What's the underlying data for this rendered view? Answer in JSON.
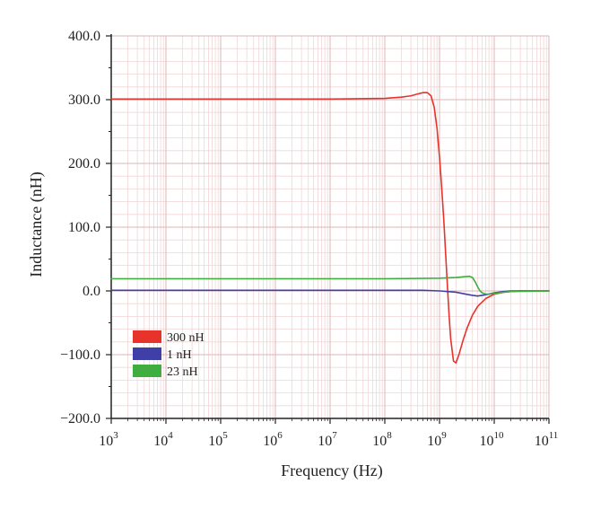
{
  "chart_data": {
    "type": "line",
    "xlabel": "Frequency (Hz)",
    "ylabel": "Inductance (nH)",
    "x_scale": "log",
    "xlim": [
      1000,
      100000000000
    ],
    "ylim": [
      -200,
      400
    ],
    "x_ticks": [
      {
        "base": "10",
        "exp": "3",
        "value": 1000
      },
      {
        "base": "10",
        "exp": "4",
        "value": 10000
      },
      {
        "base": "10",
        "exp": "5",
        "value": 100000
      },
      {
        "base": "10",
        "exp": "6",
        "value": 1000000
      },
      {
        "base": "10",
        "exp": "7",
        "value": 10000000
      },
      {
        "base": "10",
        "exp": "8",
        "value": 100000000
      },
      {
        "base": "10",
        "exp": "9",
        "value": 1000000000
      },
      {
        "base": "10",
        "exp": "10",
        "value": 10000000000
      },
      {
        "base": "10",
        "exp": "11",
        "value": 100000000000
      }
    ],
    "y_ticks": [
      {
        "label": "400.0",
        "value": 400
      },
      {
        "label": "300.0",
        "value": 300
      },
      {
        "label": "200.0",
        "value": 200
      },
      {
        "label": "100.0",
        "value": 100
      },
      {
        "label": "0.0",
        "value": 0
      },
      {
        "label": "−100.0",
        "value": -100
      },
      {
        "label": "−200.0",
        "value": -200
      }
    ],
    "grid": true,
    "legend_position": "bottom-left",
    "series": [
      {
        "name": "300 nH",
        "color": "#e8322c",
        "x": [
          1000,
          10000000,
          100000000,
          200000000,
          300000000,
          400000000,
          500000000,
          600000000,
          700000000,
          800000000,
          900000000,
          1000000000,
          1100000000,
          1200000000,
          1300000000,
          1400000000,
          1500000000,
          1600000000,
          1800000000,
          2000000000,
          2300000000,
          2700000000,
          3200000000,
          4000000000,
          5000000000,
          7000000000,
          10000000000,
          15000000000,
          20000000000,
          30000000000,
          100000000000
        ],
        "y": [
          301,
          301,
          302,
          304,
          306,
          309,
          311,
          311,
          306,
          288,
          255,
          210,
          160,
          110,
          55,
          5,
          -40,
          -75,
          -110,
          -113,
          -98,
          -77,
          -58,
          -38,
          -24,
          -12,
          -5,
          -2,
          -1,
          0,
          0
        ]
      },
      {
        "name": "1 nH",
        "color": "#3f3fa8",
        "x": [
          1000,
          100000000,
          500000000,
          1000000000,
          2000000000,
          3000000000,
          4000000000,
          5000000000,
          6000000000,
          8000000000,
          10000000000,
          15000000000,
          20000000000,
          100000000000
        ],
        "y": [
          1,
          1,
          1,
          0,
          -2,
          -5,
          -7,
          -8,
          -7,
          -5,
          -3,
          -1,
          0,
          0
        ]
      },
      {
        "name": "23 nH",
        "color": "#3fae3f",
        "x": [
          1000,
          100000000,
          1000000000,
          2000000000,
          3000000000,
          3500000000,
          4000000000,
          4500000000,
          5000000000,
          5500000000,
          6000000000,
          7000000000,
          8000000000,
          10000000000,
          15000000000,
          20000000000,
          100000000000
        ],
        "y": [
          19,
          19,
          20,
          21,
          22.5,
          23,
          21,
          14,
          6,
          0,
          -3,
          -5,
          -5,
          -4,
          -2,
          -1,
          0
        ]
      }
    ]
  }
}
